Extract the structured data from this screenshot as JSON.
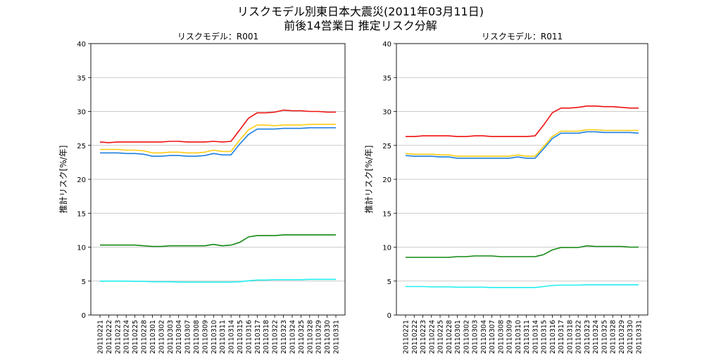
{
  "title": {
    "line1": "リスクモデル別東日本大震災(2011年03月11日)",
    "line2": "前後14営業日 推定リスク分解"
  },
  "colors": {
    "red": "#ee1111",
    "yellow": "#ffcc11",
    "blue": "#1e7fe0",
    "green": "#118811",
    "cyan": "#22eeee",
    "grid": "#bbbbbb"
  },
  "chart_data": [
    {
      "type": "line",
      "title": "リスクモデル：R001",
      "ylabel": "推計リスク[%/年]",
      "xlabel": "",
      "ylim": [
        0,
        40
      ],
      "yticks": [
        0,
        5,
        10,
        15,
        20,
        25,
        30,
        35,
        40
      ],
      "grid": "y",
      "categories": [
        "20110221",
        "20110222",
        "20110223",
        "20110224",
        "20110225",
        "20110228",
        "20110301",
        "20110302",
        "20110303",
        "20110304",
        "20110307",
        "20110308",
        "20110309",
        "20110310",
        "20110311",
        "20110314",
        "20110315",
        "20110316",
        "20110317",
        "20110318",
        "20110322",
        "20110323",
        "20110324",
        "20110325",
        "20110328",
        "20110329",
        "20110330",
        "20110331"
      ],
      "series": [
        {
          "name": "red",
          "color": "red",
          "values": [
            25.5,
            25.4,
            25.5,
            25.5,
            25.5,
            25.5,
            25.5,
            25.5,
            25.6,
            25.6,
            25.5,
            25.5,
            25.5,
            25.6,
            25.5,
            25.6,
            27.3,
            29.0,
            29.8,
            29.8,
            29.9,
            30.2,
            30.1,
            30.1,
            30.0,
            30.0,
            29.9,
            29.9
          ]
        },
        {
          "name": "yellow",
          "color": "yellow",
          "values": [
            24.4,
            24.4,
            24.4,
            24.3,
            24.3,
            24.2,
            23.9,
            23.9,
            24.0,
            24.0,
            23.9,
            23.9,
            24.0,
            24.3,
            24.1,
            24.1,
            25.8,
            27.3,
            28.0,
            28.0,
            27.9,
            28.0,
            28.0,
            28.0,
            28.1,
            28.1,
            28.1,
            28.1
          ]
        },
        {
          "name": "blue",
          "color": "blue",
          "values": [
            23.9,
            23.9,
            23.9,
            23.8,
            23.8,
            23.7,
            23.4,
            23.4,
            23.5,
            23.5,
            23.4,
            23.4,
            23.5,
            23.8,
            23.6,
            23.6,
            25.2,
            26.6,
            27.4,
            27.4,
            27.4,
            27.5,
            27.5,
            27.5,
            27.6,
            27.6,
            27.6,
            27.6
          ]
        },
        {
          "name": "green",
          "color": "green",
          "values": [
            10.3,
            10.3,
            10.3,
            10.3,
            10.3,
            10.2,
            10.1,
            10.1,
            10.2,
            10.2,
            10.2,
            10.2,
            10.2,
            10.4,
            10.2,
            10.3,
            10.7,
            11.5,
            11.7,
            11.7,
            11.7,
            11.8,
            11.8,
            11.8,
            11.8,
            11.8,
            11.8,
            11.8
          ]
        },
        {
          "name": "cyan",
          "color": "cyan",
          "values": [
            5.0,
            5.0,
            5.0,
            5.0,
            4.95,
            4.95,
            4.9,
            4.9,
            4.9,
            4.85,
            4.85,
            4.85,
            4.85,
            4.85,
            4.85,
            4.85,
            4.9,
            5.05,
            5.15,
            5.15,
            5.2,
            5.2,
            5.2,
            5.2,
            5.25,
            5.25,
            5.25,
            5.25
          ]
        }
      ]
    },
    {
      "type": "line",
      "title": "リスクモデル：R011",
      "ylabel": "推計リスク[%/年]",
      "xlabel": "",
      "ylim": [
        0,
        40
      ],
      "yticks": [
        0,
        5,
        10,
        15,
        20,
        25,
        30,
        35,
        40
      ],
      "grid": "y",
      "categories": [
        "20110221",
        "20110222",
        "20110223",
        "20110224",
        "20110225",
        "20110228",
        "20110301",
        "20110302",
        "20110303",
        "20110304",
        "20110307",
        "20110308",
        "20110309",
        "20110310",
        "20110311",
        "20110314",
        "20110315",
        "20110316",
        "20110317",
        "20110318",
        "20110322",
        "20110323",
        "20110324",
        "20110325",
        "20110328",
        "20110329",
        "20110330",
        "20110331"
      ],
      "series": [
        {
          "name": "red",
          "color": "red",
          "values": [
            26.3,
            26.3,
            26.4,
            26.4,
            26.4,
            26.4,
            26.3,
            26.3,
            26.4,
            26.4,
            26.3,
            26.3,
            26.3,
            26.3,
            26.3,
            26.4,
            28.0,
            29.8,
            30.5,
            30.5,
            30.6,
            30.8,
            30.8,
            30.7,
            30.7,
            30.6,
            30.5,
            30.5
          ]
        },
        {
          "name": "yellow",
          "color": "yellow",
          "values": [
            23.8,
            23.7,
            23.7,
            23.7,
            23.6,
            23.6,
            23.4,
            23.4,
            23.4,
            23.4,
            23.4,
            23.4,
            23.4,
            23.6,
            23.4,
            23.4,
            24.8,
            26.3,
            27.1,
            27.1,
            27.1,
            27.3,
            27.3,
            27.2,
            27.2,
            27.2,
            27.2,
            27.2
          ]
        },
        {
          "name": "blue",
          "color": "blue",
          "values": [
            23.5,
            23.4,
            23.4,
            23.4,
            23.3,
            23.3,
            23.1,
            23.1,
            23.1,
            23.1,
            23.1,
            23.1,
            23.1,
            23.3,
            23.1,
            23.1,
            24.5,
            26.0,
            26.8,
            26.8,
            26.8,
            27.0,
            27.0,
            26.9,
            26.9,
            26.9,
            26.9,
            26.8
          ]
        },
        {
          "name": "green",
          "color": "green",
          "values": [
            8.5,
            8.5,
            8.5,
            8.5,
            8.5,
            8.5,
            8.6,
            8.6,
            8.7,
            8.7,
            8.7,
            8.6,
            8.6,
            8.6,
            8.6,
            8.6,
            8.9,
            9.6,
            9.95,
            9.95,
            9.95,
            10.2,
            10.1,
            10.1,
            10.1,
            10.1,
            10.0,
            10.0
          ]
        },
        {
          "name": "cyan",
          "color": "cyan",
          "values": [
            4.2,
            4.2,
            4.2,
            4.15,
            4.15,
            4.15,
            4.1,
            4.1,
            4.1,
            4.1,
            4.05,
            4.05,
            4.05,
            4.05,
            4.05,
            4.05,
            4.2,
            4.35,
            4.4,
            4.4,
            4.4,
            4.45,
            4.45,
            4.45,
            4.45,
            4.45,
            4.45,
            4.45
          ]
        }
      ]
    }
  ]
}
